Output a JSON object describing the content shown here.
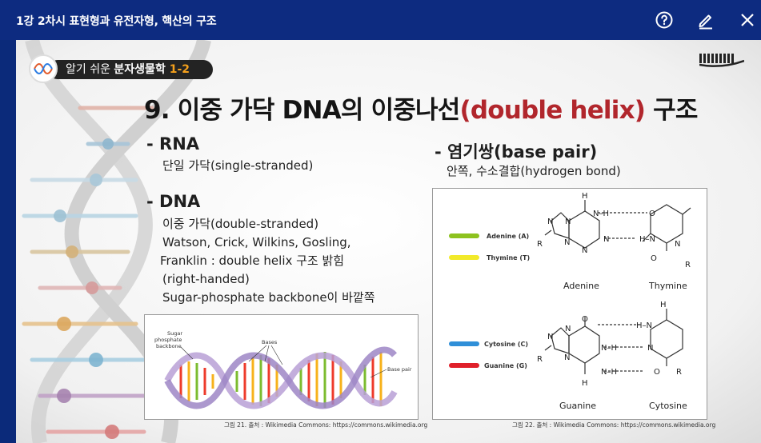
{
  "window": {
    "title": "1강 2차시 표현형과 유전자형, 핵산의 구조",
    "help_icon": "help-circle-icon",
    "edit_icon": "pencil-icon",
    "close_icon": "close-icon"
  },
  "slide": {
    "badge_prefix": "알기 쉬운 ",
    "badge_subject": "분자생물학 ",
    "badge_number": "1-2",
    "heading_prefix": "9. 이중 가닥 DNA의 이중나선",
    "heading_accent": "(double helix)",
    "heading_suffix": " 구조",
    "rna_heading": "- RNA",
    "rna_text": "단일 가닥(single-stranded)",
    "dna_heading": "- DNA",
    "dna_lines": [
      "이중 가닥(double-stranded)",
      "Watson, Crick, Wilkins, Gosling,",
      "Franklin : double helix 구조 밝힘",
      "(right-handed)",
      "Sugar-phosphate backbone이 바깥쪽"
    ],
    "bp_heading": "- 염기쌍(base pair)",
    "bp_text": "안쪽, 수소결합(hydrogen bond)",
    "fig21": {
      "label_backbone": [
        "Sugar",
        "phosphate",
        "backbone"
      ],
      "label_bases": "Bases",
      "label_basepair": "Base pair",
      "caption": "그림 21. 출처 : Wikimedia Commons: https://commons.wikimedia.org"
    },
    "fig22": {
      "legend": [
        "Adenine (A)",
        "Thymine (T)",
        "Cytosine (C)",
        "Guanine (G)"
      ],
      "legend_colors": [
        "#8dc21f",
        "#f2ea2a",
        "#2f8fd8",
        "#e0202a"
      ],
      "names": [
        "Adenine",
        "Thymine",
        "Guanine",
        "Cytosine"
      ],
      "caption": "그림 22. 출처 : Wikimedia Commons: https://commons.wikimedia.org"
    }
  }
}
